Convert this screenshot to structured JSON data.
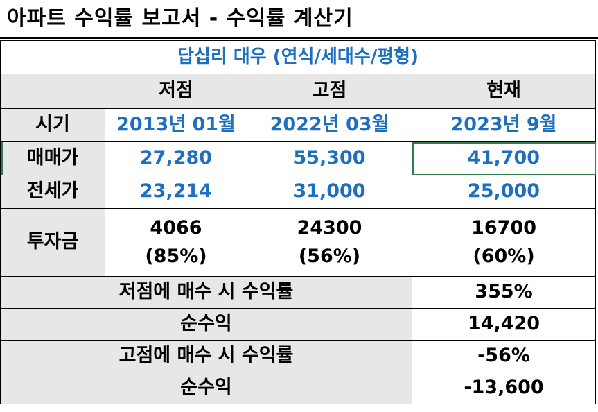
{
  "title": "아파트 수익률 보고서 - 수익률 계산기",
  "subtitle": "답십리 대우 (연식/세대수/평형)",
  "columns": [
    "저점",
    "고점",
    "현재"
  ],
  "rows": [
    {
      "label": "시기",
      "values": [
        "2013년 01월",
        "2022년 03월",
        "2023년 9월"
      ]
    },
    {
      "label": "매매가",
      "values": [
        "27,280",
        "55,300",
        "41,700"
      ]
    },
    {
      "label": "전세가",
      "values": [
        "23,214",
        "31,000",
        "25,000"
      ]
    }
  ],
  "investment": {
    "label": "투자금",
    "values": [
      "4066",
      "24300",
      "16700"
    ],
    "percents": [
      "(85%)",
      "(56%)",
      "(60%)"
    ]
  },
  "summary": [
    {
      "label": "저점에 매수 시 수익률",
      "value": "355%"
    },
    {
      "label": "순수익",
      "value": "14,420"
    },
    {
      "label": "고점에 매수 시 수익률",
      "value": "-56%"
    },
    {
      "label": "순수익",
      "value": "-13,600"
    }
  ],
  "colors": {
    "accent_blue": "#1f6fbf",
    "header_shade": "#e7e7e7",
    "selection_green": "#2e7d4f"
  }
}
